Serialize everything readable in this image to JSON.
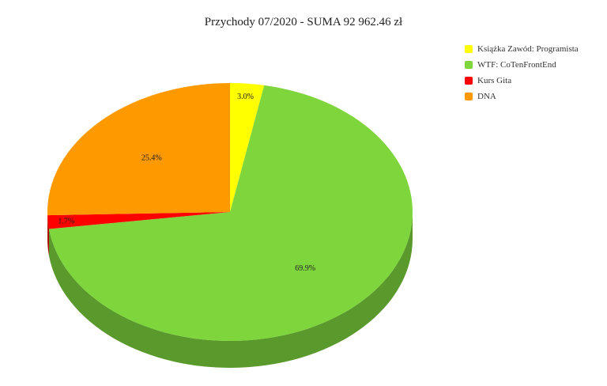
{
  "chart_data": {
    "type": "pie",
    "title": "Przychody 07/2020 - SUMA 92 962.46 zł",
    "legend_position": "top-right",
    "slices": [
      {
        "name": "Książka Zawód: Programista",
        "percent": 3.0,
        "label": "3.0%",
        "color": "#ffff00",
        "side_color": "#cccc00"
      },
      {
        "name": "WTF: CoTenFrontEnd",
        "percent": 69.9,
        "label": "69.9%",
        "color": "#7ed63c",
        "side_color": "#5a9a2c"
      },
      {
        "name": "Kurs Gita",
        "percent": 1.7,
        "label": "1.7%",
        "color": "#ff0000",
        "side_color": "#b30000"
      },
      {
        "name": "DNA",
        "percent": 25.4,
        "label": "25.4%",
        "color": "#ff9900",
        "side_color": "#b36b00"
      }
    ]
  }
}
